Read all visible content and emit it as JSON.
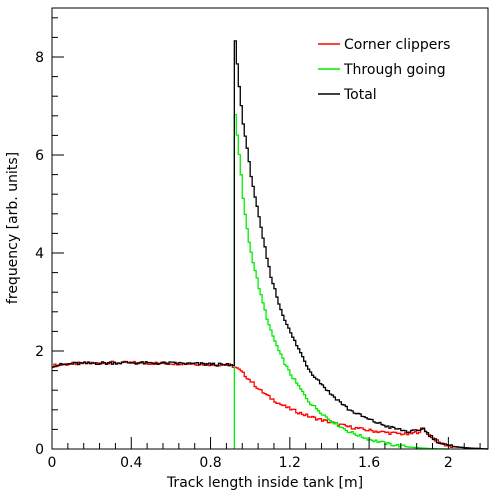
{
  "chart_data": {
    "type": "line",
    "title": "",
    "xlabel": "Track length inside tank [m]",
    "ylabel": "frequency [arb. units]",
    "xlim": [
      0,
      2.2
    ],
    "ylim": [
      0,
      9
    ],
    "x_major_ticks": [
      0,
      0.4,
      0.8,
      1.2,
      1.6,
      2
    ],
    "x_tick_labels": [
      "0",
      "0.4",
      "0.8",
      "1.2",
      "1.6",
      "2"
    ],
    "y_major_ticks": [
      0,
      2,
      4,
      6,
      8
    ],
    "y_tick_labels": [
      "0",
      "2",
      "4",
      "6",
      "8"
    ],
    "grid": false,
    "legend_position": "top-right",
    "series": [
      {
        "name": "Corner clippers",
        "color": "#ff0000",
        "step": true,
        "points": [
          [
            0,
            1.7
          ],
          [
            0.1,
            1.74
          ],
          [
            0.2,
            1.75
          ],
          [
            0.3,
            1.76
          ],
          [
            0.4,
            1.76
          ],
          [
            0.5,
            1.75
          ],
          [
            0.6,
            1.75
          ],
          [
            0.7,
            1.74
          ],
          [
            0.8,
            1.73
          ],
          [
            0.9,
            1.71
          ],
          [
            0.92,
            1.68
          ],
          [
            0.95,
            1.6
          ],
          [
            1.0,
            1.4
          ],
          [
            1.05,
            1.2
          ],
          [
            1.1,
            1.05
          ],
          [
            1.15,
            0.92
          ],
          [
            1.2,
            0.82
          ],
          [
            1.3,
            0.66
          ],
          [
            1.4,
            0.55
          ],
          [
            1.5,
            0.45
          ],
          [
            1.6,
            0.38
          ],
          [
            1.7,
            0.33
          ],
          [
            1.8,
            0.3
          ],
          [
            1.85,
            0.35
          ],
          [
            1.87,
            0.42
          ],
          [
            1.9,
            0.3
          ],
          [
            1.95,
            0.14
          ],
          [
            2.0,
            0.06
          ],
          [
            2.1,
            0.02
          ],
          [
            2.2,
            0.0
          ]
        ]
      },
      {
        "name": "Through going",
        "color": "#00ee00",
        "step": true,
        "points": [
          [
            0.92,
            0.0
          ],
          [
            0.92,
            7.0
          ],
          [
            0.95,
            5.8
          ],
          [
            0.97,
            4.9
          ],
          [
            1.0,
            4.1
          ],
          [
            1.05,
            3.2
          ],
          [
            1.1,
            2.45
          ],
          [
            1.15,
            1.95
          ],
          [
            1.2,
            1.55
          ],
          [
            1.3,
            0.95
          ],
          [
            1.4,
            0.6
          ],
          [
            1.5,
            0.35
          ],
          [
            1.6,
            0.2
          ],
          [
            1.7,
            0.1
          ],
          [
            1.8,
            0.04
          ],
          [
            1.9,
            0.01
          ],
          [
            2.0,
            0.0
          ]
        ]
      },
      {
        "name": "Total",
        "color": "#000000",
        "step": true,
        "points": [
          [
            0,
            1.7
          ],
          [
            0.1,
            1.74
          ],
          [
            0.2,
            1.75
          ],
          [
            0.3,
            1.76
          ],
          [
            0.4,
            1.76
          ],
          [
            0.5,
            1.75
          ],
          [
            0.6,
            1.75
          ],
          [
            0.7,
            1.74
          ],
          [
            0.8,
            1.73
          ],
          [
            0.9,
            1.71
          ],
          [
            0.92,
            1.68
          ],
          [
            0.92,
            8.6
          ],
          [
            0.94,
            7.6
          ],
          [
            0.96,
            6.8
          ],
          [
            1.0,
            5.7
          ],
          [
            1.05,
            4.6
          ],
          [
            1.1,
            3.6
          ],
          [
            1.15,
            2.9
          ],
          [
            1.2,
            2.4
          ],
          [
            1.3,
            1.6
          ],
          [
            1.4,
            1.15
          ],
          [
            1.5,
            0.8
          ],
          [
            1.6,
            0.6
          ],
          [
            1.7,
            0.45
          ],
          [
            1.8,
            0.35
          ],
          [
            1.85,
            0.37
          ],
          [
            1.87,
            0.44
          ],
          [
            1.9,
            0.3
          ],
          [
            1.95,
            0.14
          ],
          [
            2.0,
            0.06
          ],
          [
            2.1,
            0.02
          ],
          [
            2.2,
            0.0
          ]
        ]
      }
    ]
  }
}
